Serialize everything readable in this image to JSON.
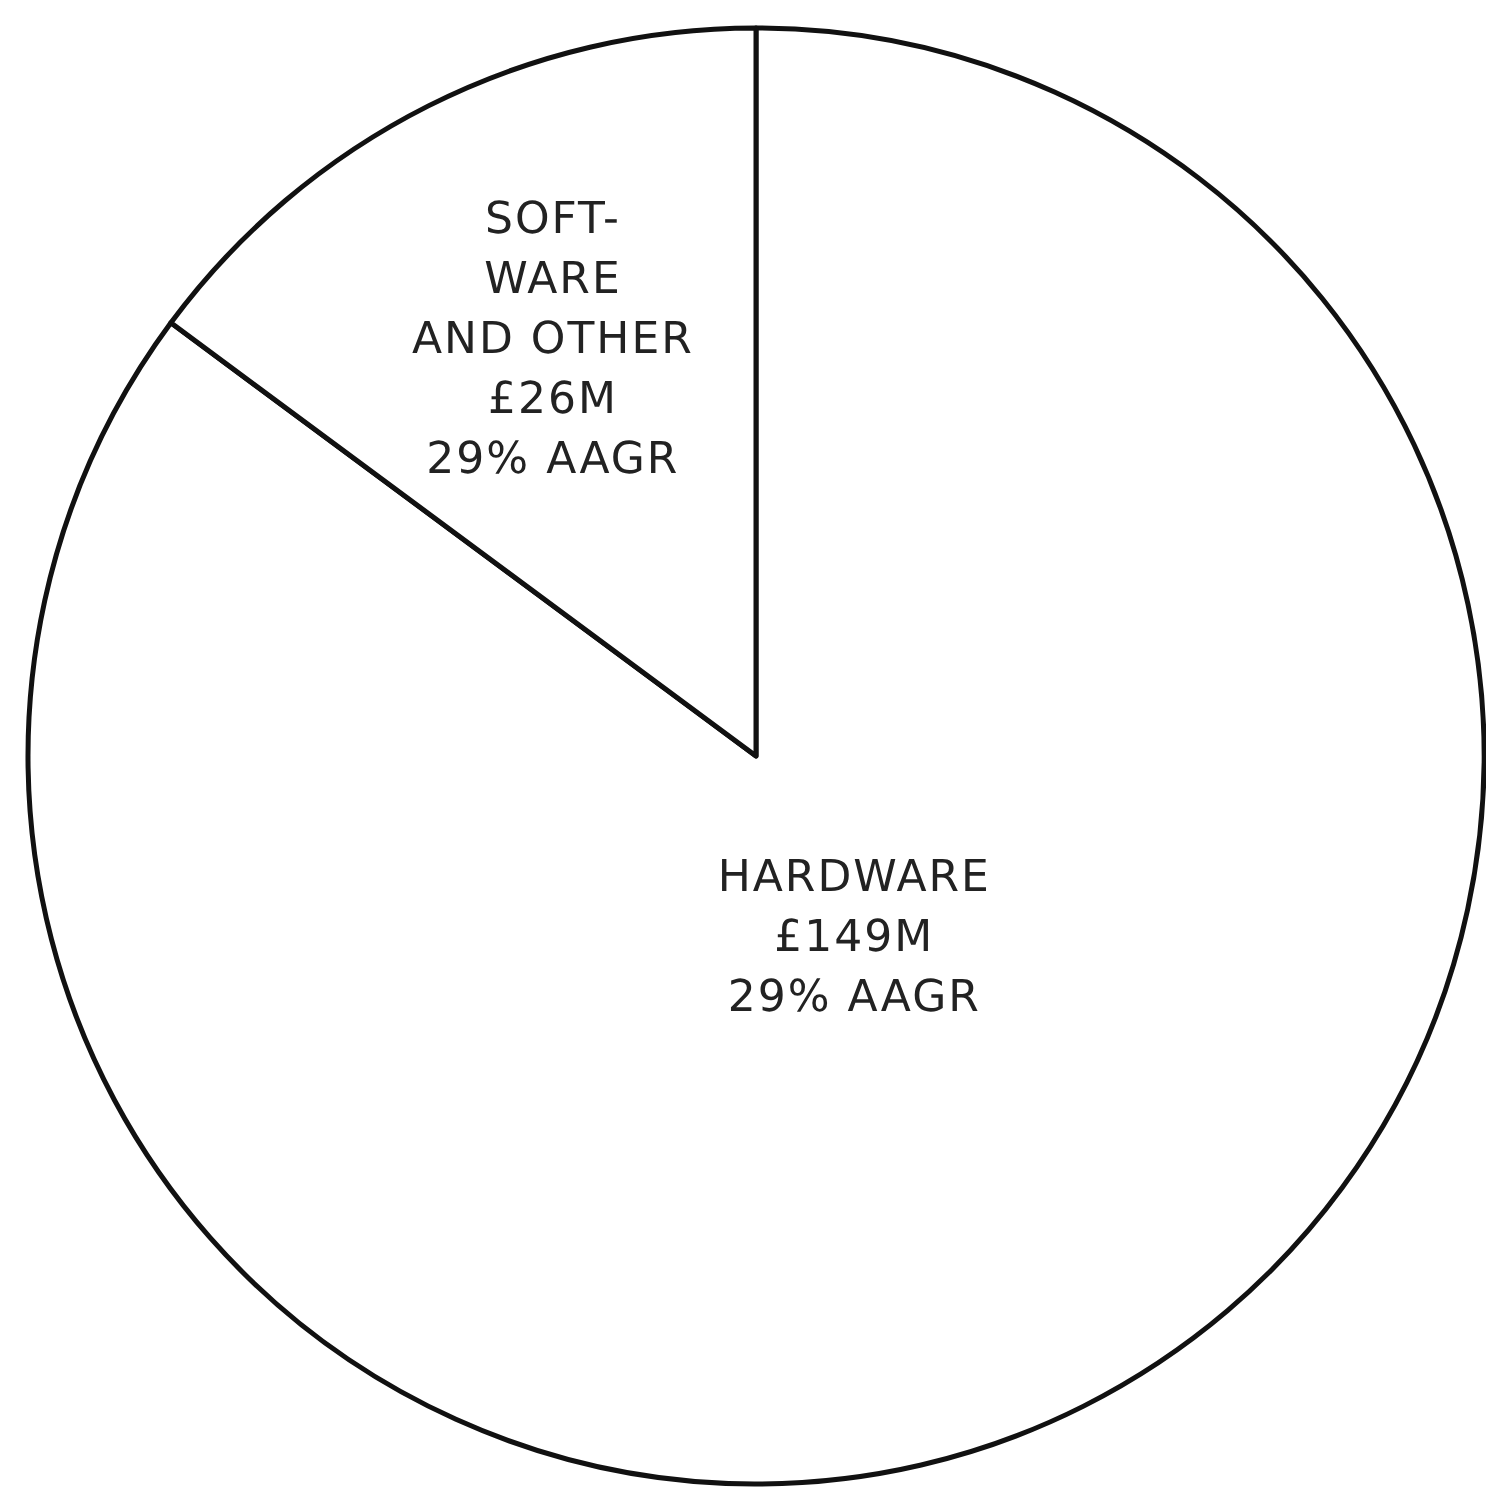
{
  "chart_data": {
    "type": "pie",
    "categories": [
      "HARDWARE",
      "SOFT-\nWARE\nAND OTHER"
    ],
    "values": [
      149,
      26
    ],
    "colors": [
      "#ffffff",
      "#ffffff"
    ],
    "value_labels": [
      "£149M",
      "£26M"
    ],
    "annotations": [
      {
        "text": "29% AAGR",
        "x": "HARDWARE"
      },
      {
        "text": "29% AAGR",
        "x": "SOFT-\nWARE\nAND OTHER"
      }
    ]
  }
}
